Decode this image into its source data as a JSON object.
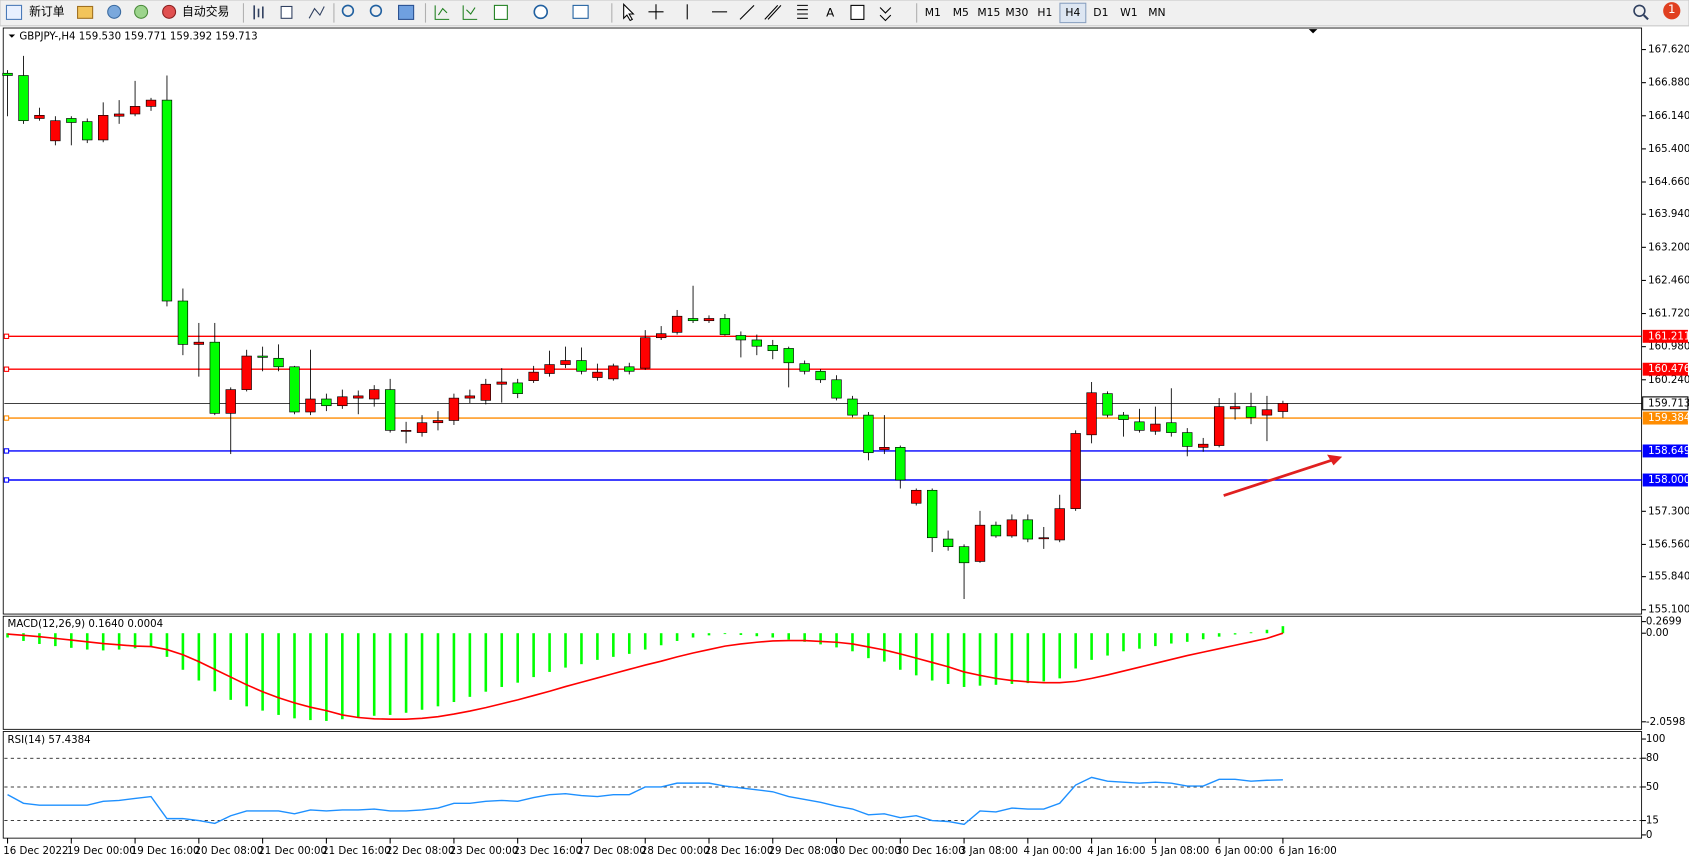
{
  "toolbar": {
    "new_order": "新订单",
    "auto_trading": "自动交易",
    "text_tool": "A",
    "timeframes": [
      "M1",
      "M5",
      "M15",
      "M30",
      "H1",
      "H4",
      "D1",
      "W1",
      "MN"
    ],
    "active_timeframe": "H4",
    "notifications": 1
  },
  "chart_data": [
    {
      "type": "candlestick",
      "title": "GBPJPY-,H4  159.530 159.771 159.392 159.713",
      "up_color": "#ff0000",
      "down_color": "#00ff00",
      "categories": [
        "16 Dec 2022",
        null,
        null,
        null,
        "19 Dec 00:00",
        null,
        null,
        null,
        "19 Dec 16:00",
        null,
        null,
        null,
        "20 Dec 08:00",
        null,
        null,
        null,
        "21 Dec 00:00",
        null,
        null,
        null,
        "21 Dec 16:00",
        null,
        null,
        null,
        "22 Dec 08:00",
        null,
        null,
        null,
        "23 Dec 00:00",
        null,
        null,
        null,
        "23 Dec 16:00",
        null,
        null,
        null,
        "27 Dec 08:00",
        null,
        null,
        null,
        "28 Dec 00:00",
        null,
        null,
        null,
        "28 Dec 16:00",
        null,
        null,
        null,
        "29 Dec 08:00",
        null,
        null,
        null,
        "30 Dec 00:00",
        null,
        null,
        null,
        "30 Dec 16:00",
        null,
        null,
        null,
        "3 Jan 08:00",
        null,
        null,
        null,
        "4 Jan 00:00",
        null,
        null,
        null,
        "4 Jan 16:00",
        null,
        null,
        null,
        "5 Jan 08:00",
        null,
        null,
        null,
        "6 Jan 00:00",
        null,
        null,
        null,
        "6 Jan 16:00"
      ],
      "open": [
        167.09,
        167.04,
        166.08,
        165.58,
        166.08,
        166.01,
        165.6,
        166.13,
        166.18,
        166.35,
        166.49,
        162.0,
        161.03,
        161.08,
        159.49,
        160.02,
        160.77,
        160.72,
        160.53,
        159.52,
        159.81,
        159.66,
        159.83,
        159.81,
        160.02,
        159.09,
        159.06,
        159.28,
        159.33,
        159.83,
        159.78,
        160.14,
        160.17,
        160.22,
        160.38,
        160.58,
        160.67,
        160.29,
        160.26,
        160.53,
        160.5,
        161.18,
        161.3,
        161.61,
        161.56,
        161.61,
        161.23,
        161.13,
        161.01,
        160.94,
        160.6,
        160.43,
        160.24,
        159.81,
        159.45,
        158.68,
        158.73,
        157.48,
        157.77,
        156.68,
        156.51,
        156.18,
        156.99,
        156.75,
        157.11,
        156.71,
        156.66,
        157.36,
        159.01,
        159.93,
        159.45,
        159.3,
        159.09,
        159.28,
        159.06,
        158.73,
        158.77,
        159.59,
        159.64,
        159.45,
        159.53
      ],
      "high": [
        167.16,
        167.48,
        166.32,
        166.13,
        166.13,
        166.08,
        166.44,
        166.49,
        166.92,
        166.54,
        167.04,
        162.28,
        161.51,
        161.51,
        160.07,
        160.91,
        160.98,
        161.03,
        160.55,
        160.91,
        159.93,
        160.02,
        160.0,
        160.12,
        160.26,
        159.3,
        159.45,
        159.54,
        159.93,
        160.02,
        160.26,
        160.5,
        160.26,
        160.55,
        160.89,
        160.98,
        160.96,
        160.6,
        160.6,
        160.62,
        161.35,
        161.44,
        161.8,
        162.34,
        161.68,
        161.71,
        161.32,
        161.25,
        161.13,
        160.98,
        160.67,
        160.48,
        160.34,
        159.88,
        159.52,
        159.45,
        158.77,
        157.81,
        157.81,
        156.87,
        156.56,
        157.31,
        157.07,
        157.23,
        157.23,
        156.95,
        157.67,
        159.11,
        160.19,
        159.98,
        159.52,
        159.59,
        159.64,
        160.05,
        159.16,
        158.94,
        159.83,
        159.95,
        159.95,
        159.88,
        159.771
      ],
      "low": [
        166.13,
        165.96,
        166.03,
        165.48,
        165.48,
        165.53,
        165.55,
        165.96,
        166.13,
        166.25,
        161.88,
        160.79,
        160.31,
        159.45,
        158.58,
        159.98,
        160.43,
        160.43,
        159.47,
        159.45,
        159.54,
        159.59,
        159.47,
        159.64,
        159.06,
        158.82,
        158.97,
        159.11,
        159.23,
        159.71,
        159.69,
        159.73,
        159.83,
        160.17,
        160.31,
        160.5,
        160.36,
        160.22,
        160.22,
        160.36,
        160.46,
        161.13,
        161.25,
        161.51,
        161.51,
        161.23,
        160.74,
        160.79,
        160.7,
        160.07,
        160.36,
        160.17,
        159.78,
        159.4,
        158.44,
        158.58,
        157.81,
        157.43,
        156.39,
        156.42,
        155.34,
        156.15,
        156.71,
        156.71,
        156.61,
        156.46,
        156.61,
        157.31,
        158.82,
        159.4,
        158.97,
        159.06,
        159.01,
        158.97,
        158.53,
        158.63,
        158.73,
        159.35,
        159.25,
        158.87,
        159.392
      ],
      "close": [
        167.04,
        166.03,
        166.15,
        166.03,
        165.99,
        165.6,
        166.15,
        166.18,
        166.35,
        166.49,
        162.0,
        161.03,
        161.08,
        159.49,
        160.02,
        160.77,
        160.74,
        160.53,
        159.52,
        159.81,
        159.66,
        159.86,
        159.88,
        160.02,
        159.11,
        159.11,
        159.28,
        159.33,
        159.83,
        159.88,
        160.14,
        160.19,
        159.93,
        160.41,
        160.58,
        160.67,
        160.43,
        160.41,
        160.55,
        160.43,
        161.18,
        161.27,
        161.66,
        161.56,
        161.61,
        161.25,
        161.13,
        160.99,
        160.89,
        160.62,
        160.43,
        160.24,
        159.83,
        159.45,
        158.61,
        158.73,
        158.0,
        157.77,
        156.71,
        156.51,
        156.15,
        156.99,
        156.75,
        157.11,
        156.68,
        156.71,
        157.36,
        159.04,
        159.95,
        159.45,
        159.35,
        159.11,
        159.25,
        159.06,
        158.75,
        158.8,
        159.64,
        159.64,
        159.4,
        159.57,
        159.713
      ],
      "ylim": [
        155.1,
        167.62
      ],
      "yticks": [
        {
          "value": 167.62,
          "label": "167.620"
        },
        {
          "value": 166.88,
          "label": "166.880"
        },
        {
          "value": 166.14,
          "label": "166.140"
        },
        {
          "value": 165.4,
          "label": "165.400"
        },
        {
          "value": 164.66,
          "label": "164.660"
        },
        {
          "value": 163.94,
          "label": "163.940"
        },
        {
          "value": 163.2,
          "label": "163.200"
        },
        {
          "value": 162.46,
          "label": "162.460"
        },
        {
          "value": 161.72,
          "label": "161.720"
        },
        {
          "value": 160.98,
          "label": "160.980"
        },
        {
          "value": 160.24,
          "label": "160.240"
        },
        {
          "value": 157.3,
          "label": "157.300"
        },
        {
          "value": 156.56,
          "label": "156.560"
        },
        {
          "value": 155.84,
          "label": "155.840"
        },
        {
          "value": 155.1,
          "label": "155.100"
        }
      ],
      "hlines": [
        {
          "value": 161.211,
          "label": "161.211",
          "color": "#ff0000"
        },
        {
          "value": 160.476,
          "label": "160.476",
          "color": "#ff0000"
        },
        {
          "value": 159.384,
          "label": "159.384",
          "color": "#ff8c00"
        },
        {
          "value": 158.649,
          "label": "158.649",
          "color": "#0000ff"
        },
        {
          "value": 158.0,
          "label": "158.000",
          "color": "#0000ff"
        }
      ],
      "last_price": {
        "value": 159.713,
        "label": "159.713"
      }
    },
    {
      "type": "macd",
      "title": "MACD(12,26,9) 0.1640 0.0004",
      "series": [
        {
          "kind": "bar",
          "color": "#00ff00",
          "values": [
            -0.1,
            -0.18,
            -0.25,
            -0.3,
            -0.34,
            -0.38,
            -0.4,
            -0.38,
            -0.35,
            -0.3,
            -0.55,
            -0.85,
            -1.1,
            -1.35,
            -1.55,
            -1.7,
            -1.8,
            -1.9,
            -1.98,
            -2.02,
            -2.04,
            -2.0,
            -1.96,
            -1.92,
            -1.9,
            -1.85,
            -1.78,
            -1.7,
            -1.6,
            -1.48,
            -1.36,
            -1.25,
            -1.15,
            -1.02,
            -0.9,
            -0.8,
            -0.72,
            -0.62,
            -0.55,
            -0.48,
            -0.38,
            -0.28,
            -0.18,
            -0.1,
            -0.05,
            -0.02,
            -0.04,
            -0.07,
            -0.1,
            -0.15,
            -0.2,
            -0.26,
            -0.33,
            -0.42,
            -0.58,
            -0.66,
            -0.85,
            -0.98,
            -1.1,
            -1.18,
            -1.25,
            -1.22,
            -1.2,
            -1.18,
            -1.16,
            -1.12,
            -1.05,
            -0.82,
            -0.62,
            -0.52,
            -0.42,
            -0.36,
            -0.3,
            -0.24,
            -0.2,
            -0.14,
            -0.08,
            -0.03,
            0.02,
            0.08,
            0.164
          ]
        },
        {
          "kind": "line",
          "color": "#ff0000",
          "values": [
            -0.02,
            -0.05,
            -0.08,
            -0.12,
            -0.16,
            -0.2,
            -0.24,
            -0.27,
            -0.3,
            -0.31,
            -0.38,
            -0.5,
            -0.66,
            -0.84,
            -1.02,
            -1.2,
            -1.36,
            -1.5,
            -1.62,
            -1.72,
            -1.8,
            -1.9,
            -1.96,
            -1.99,
            -2.0,
            -2.0,
            -1.98,
            -1.94,
            -1.88,
            -1.81,
            -1.73,
            -1.64,
            -1.55,
            -1.45,
            -1.35,
            -1.24,
            -1.14,
            -1.04,
            -0.94,
            -0.84,
            -0.74,
            -0.65,
            -0.55,
            -0.46,
            -0.38,
            -0.3,
            -0.25,
            -0.21,
            -0.18,
            -0.17,
            -0.17,
            -0.19,
            -0.21,
            -0.25,
            -0.32,
            -0.39,
            -0.48,
            -0.58,
            -0.68,
            -0.78,
            -0.9,
            -0.98,
            -1.05,
            -1.1,
            -1.13,
            -1.15,
            -1.15,
            -1.12,
            -1.05,
            -0.97,
            -0.88,
            -0.79,
            -0.7,
            -0.61,
            -0.52,
            -0.44,
            -0.36,
            -0.28,
            -0.2,
            -0.12,
            0.0004
          ]
        }
      ],
      "ylim": [
        -2.0598,
        0.2699
      ],
      "yticks": [
        0.2699,
        {
          "value": 0,
          "label": "0.00"
        },
        -2.0598
      ]
    },
    {
      "type": "line",
      "title": "RSI(14) 57.4384",
      "color": "#1e90ff",
      "values": [
        42,
        33,
        31,
        31,
        31,
        31,
        35,
        36,
        38,
        40,
        17,
        17,
        15,
        12,
        20,
        25,
        25,
        25,
        22,
        26,
        25,
        26,
        26,
        27,
        25,
        25,
        26,
        28,
        33,
        33,
        35,
        36,
        35,
        39,
        42,
        43,
        41,
        40,
        42,
        42,
        50,
        50,
        54,
        54,
        54,
        51,
        49,
        47,
        45,
        40,
        37,
        34,
        30,
        27,
        21,
        22,
        18,
        20,
        15,
        14,
        11,
        25,
        24,
        28,
        27,
        27,
        33,
        52,
        60,
        56,
        55,
        54,
        55,
        54,
        51,
        51,
        58,
        58,
        56,
        57,
        57.4384
      ],
      "ylim": [
        0,
        100
      ],
      "yticks": [
        100,
        80,
        50,
        15,
        0
      ]
    }
  ]
}
